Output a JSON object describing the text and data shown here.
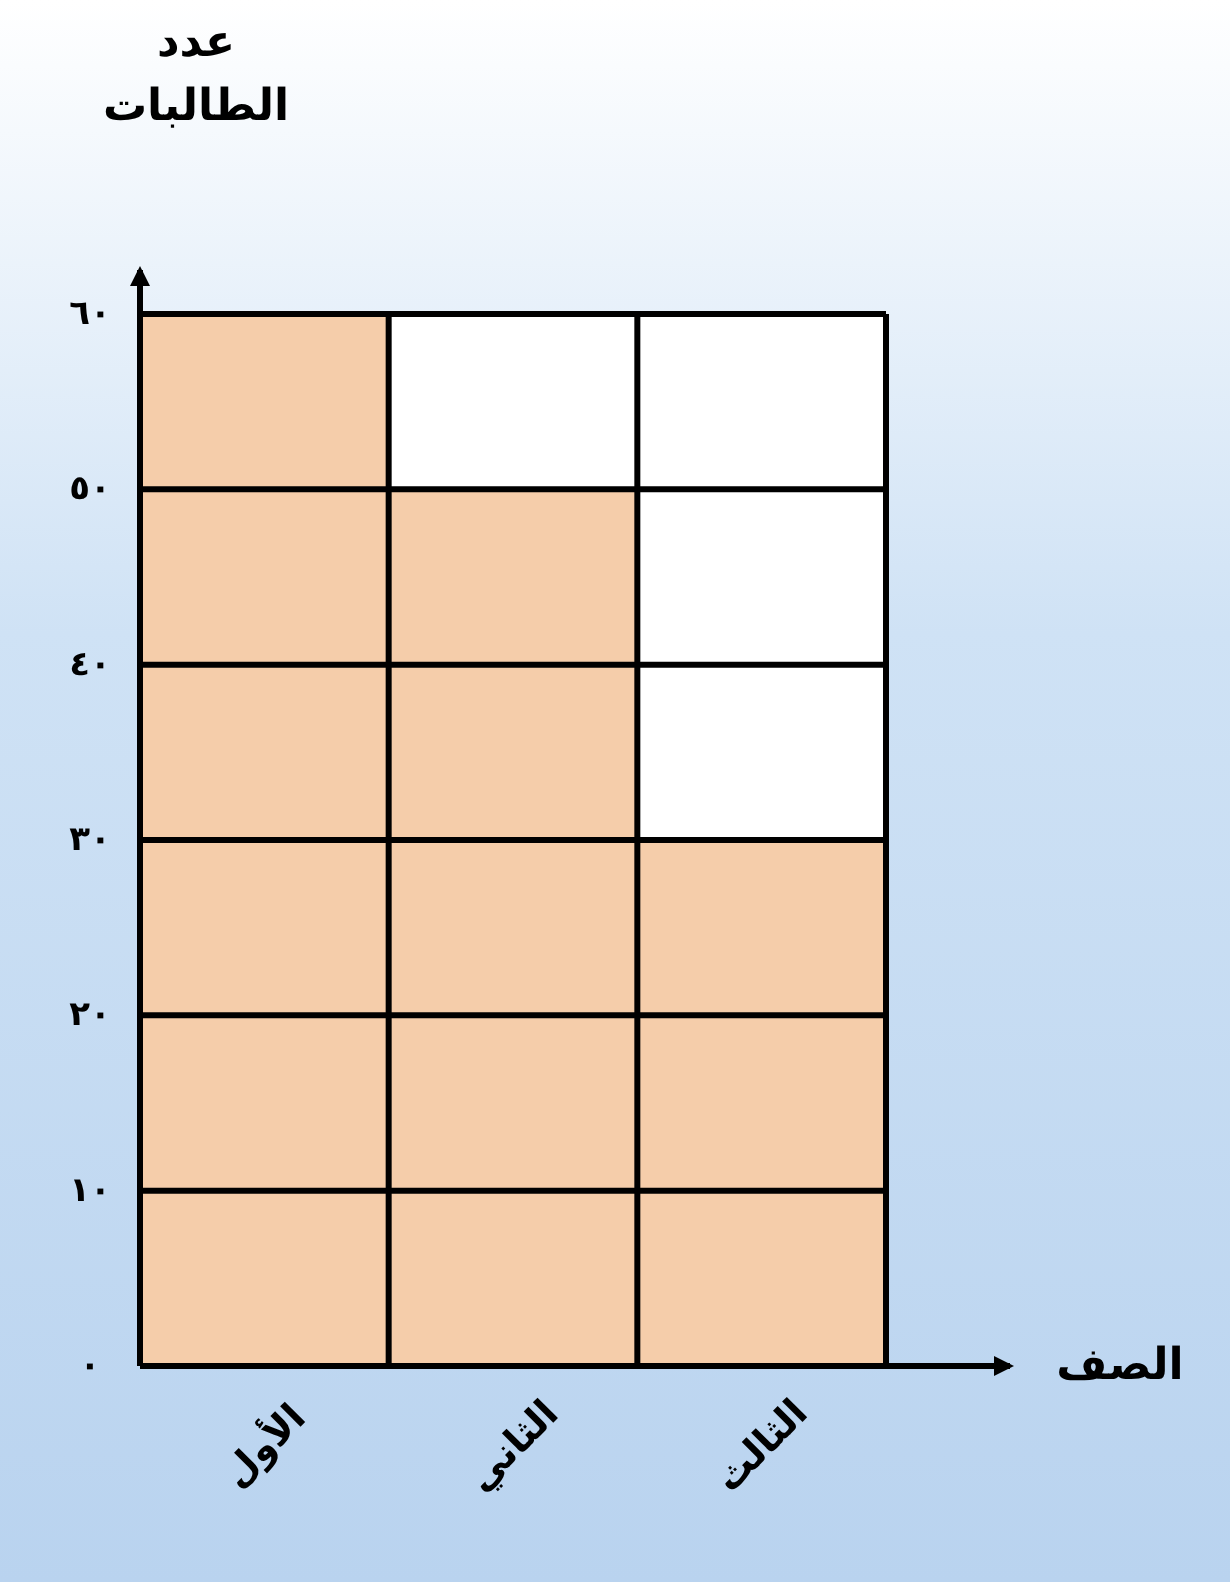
{
  "chart_data": {
    "type": "bar",
    "xlabel": "الصف",
    "ylabel": "عدد الطالبات",
    "categories": [
      "الأول",
      "الثاني",
      "الثالث"
    ],
    "values": [
      60,
      50,
      30
    ],
    "color": "#f5cdaa",
    "ylim": [
      0,
      60
    ],
    "yticks": [
      {
        "value": 0,
        "label": "٠"
      },
      {
        "value": 10,
        "label": "١٠"
      },
      {
        "value": 20,
        "label": "٢٠"
      },
      {
        "value": 30,
        "label": "٣٠"
      },
      {
        "value": 40,
        "label": "٤٠"
      },
      {
        "value": 50,
        "label": "٥٠"
      },
      {
        "value": 60,
        "label": "٦٠"
      }
    ],
    "grid": true
  }
}
